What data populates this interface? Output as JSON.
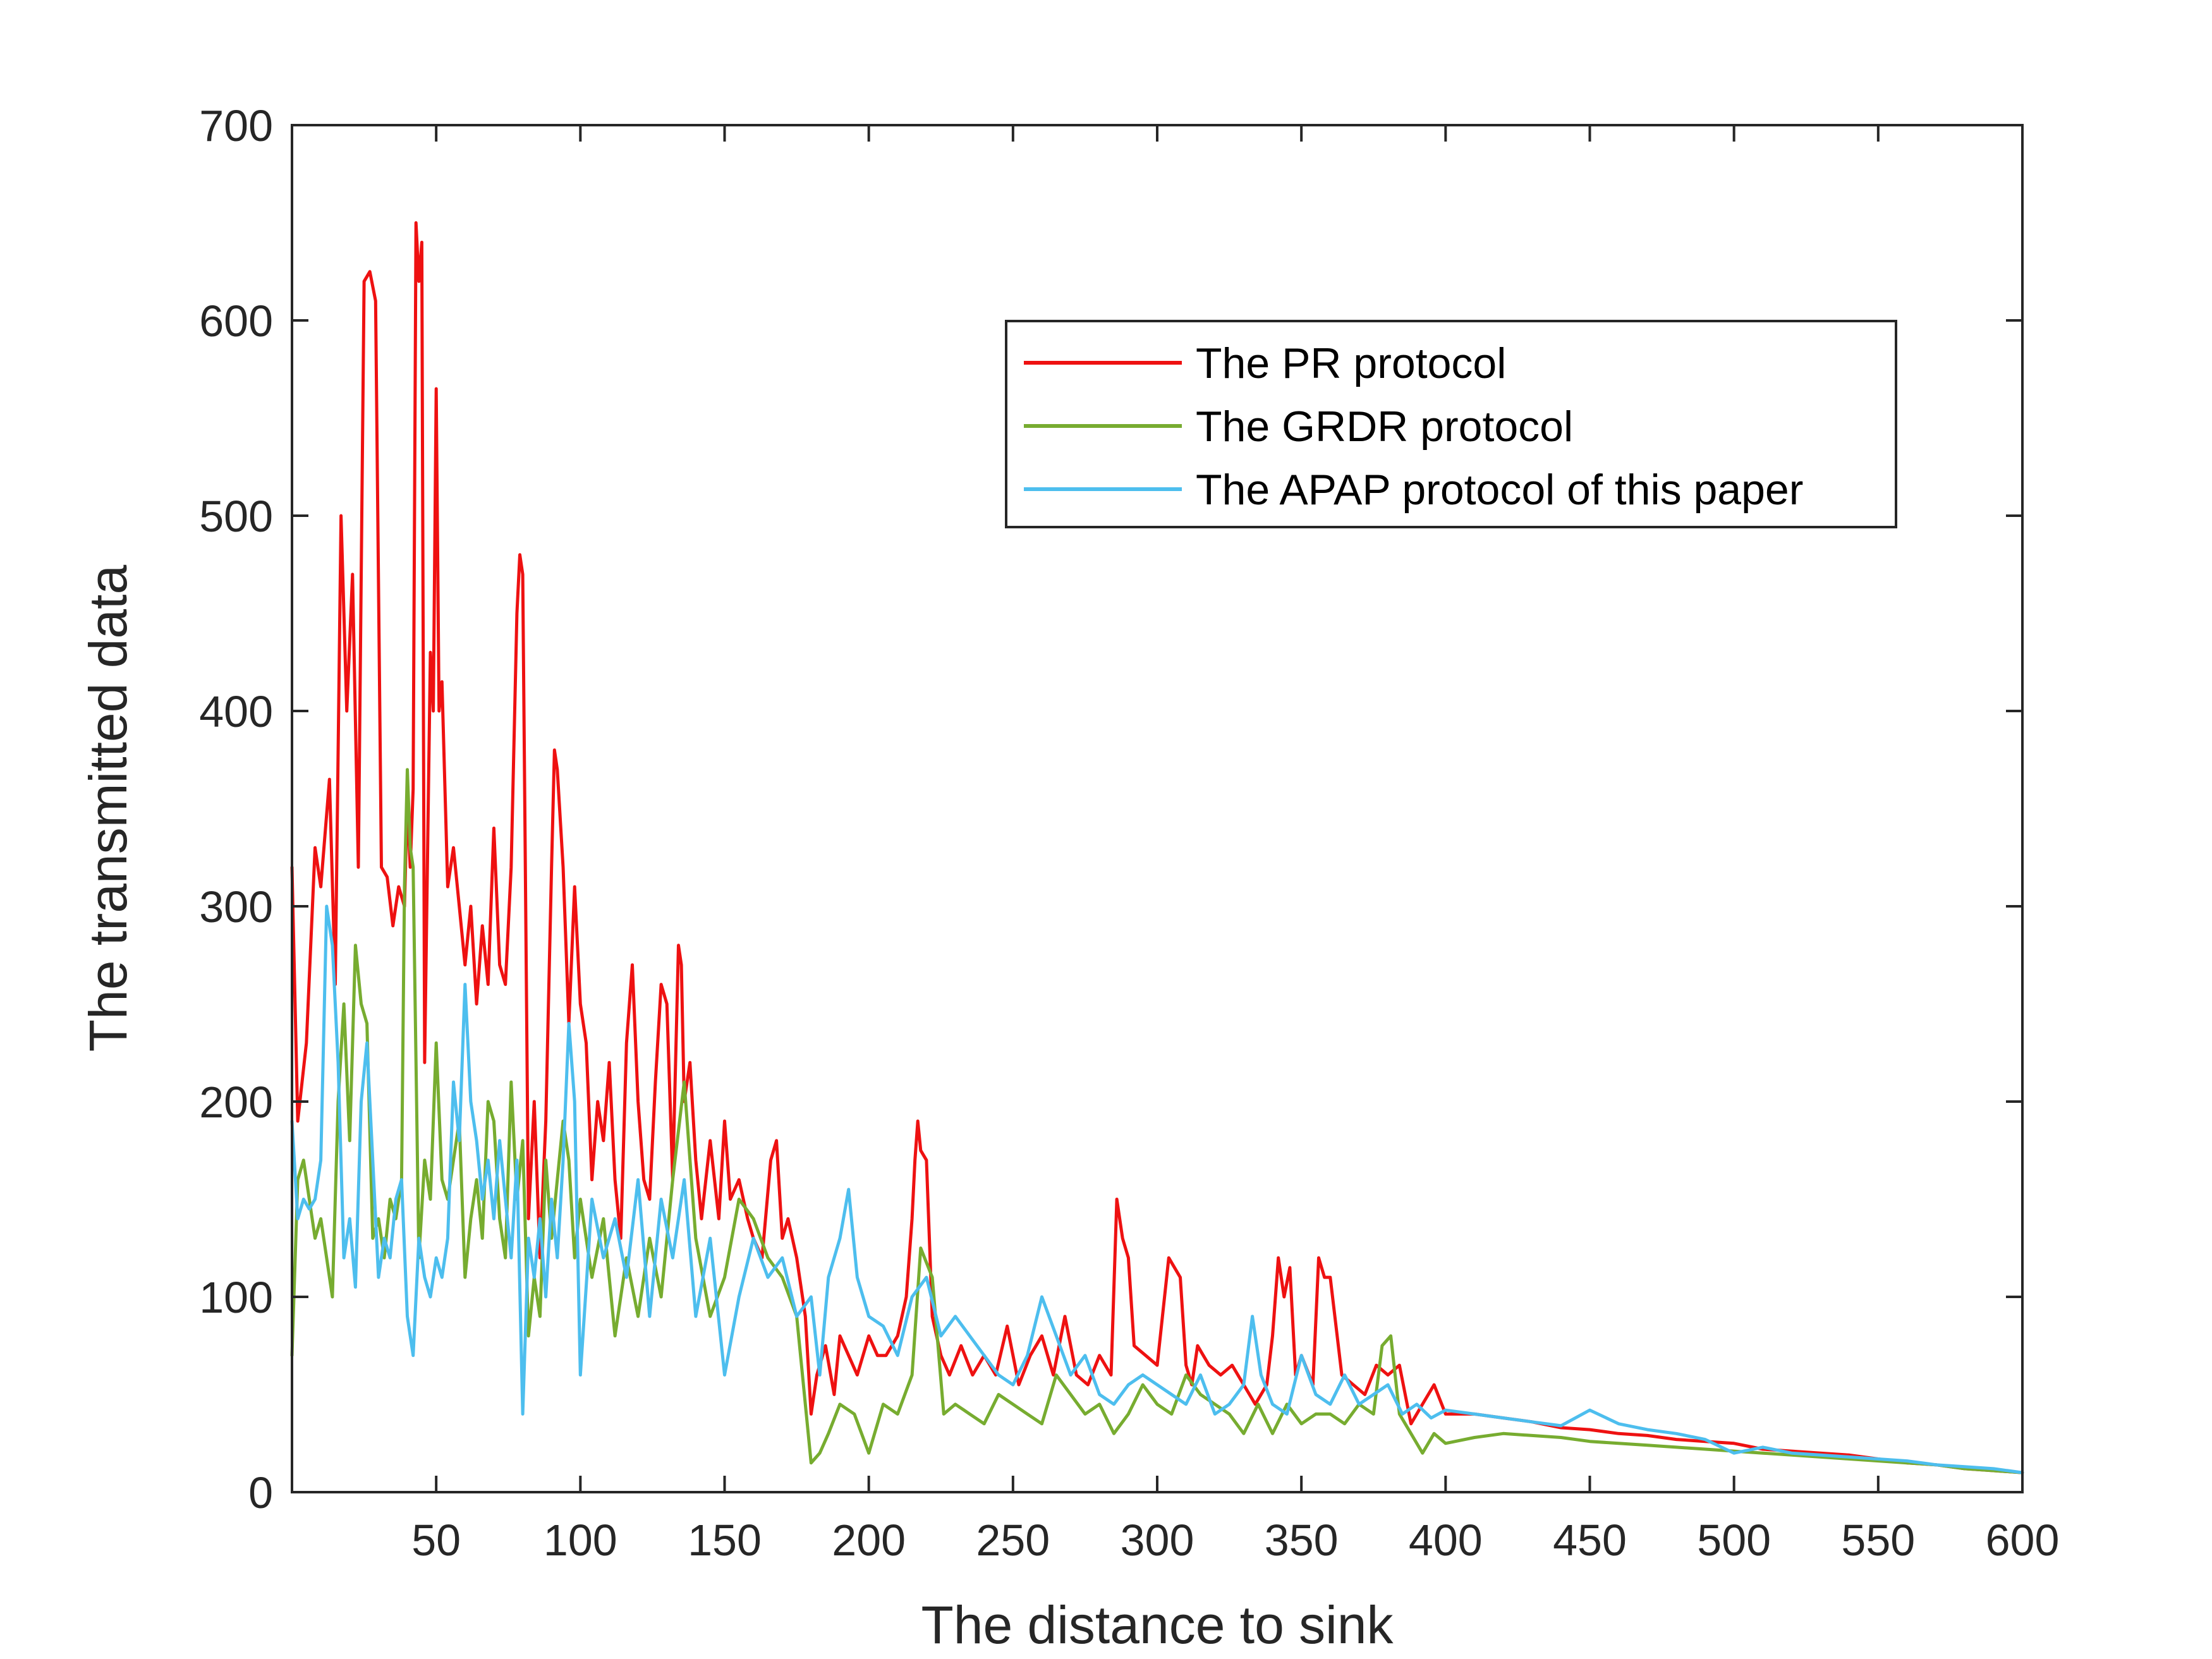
{
  "chart_data": {
    "type": "line",
    "title": "",
    "xlabel": "The distance to sink",
    "ylabel": "The transmitted data",
    "xlim": [
      0,
      600
    ],
    "ylim": [
      0,
      700
    ],
    "xticks": [
      50,
      100,
      150,
      200,
      250,
      300,
      350,
      400,
      450,
      500,
      550,
      600
    ],
    "yticks": [
      0,
      100,
      200,
      300,
      400,
      500,
      600,
      700
    ],
    "grid": false,
    "legend_position": "top-right",
    "series": [
      {
        "name": "The PR protocol",
        "color": "#ee1111",
        "x": [
          0,
          2,
          5,
          8,
          10,
          13,
          15,
          17,
          19,
          21,
          23,
          25,
          27,
          29,
          31,
          33,
          35,
          37,
          39,
          40,
          41,
          42,
          43,
          44,
          45,
          46,
          48,
          49,
          50,
          51,
          52,
          54,
          56,
          58,
          60,
          62,
          64,
          66,
          68,
          70,
          72,
          74,
          76,
          78,
          79,
          80,
          82,
          84,
          86,
          88,
          90,
          91,
          92,
          94,
          96,
          98,
          100,
          102,
          104,
          106,
          108,
          110,
          112,
          114,
          116,
          118,
          120,
          122,
          124,
          126,
          128,
          130,
          132,
          134,
          135,
          136,
          138,
          140,
          142,
          145,
          148,
          150,
          152,
          155,
          158,
          160,
          163,
          166,
          168,
          170,
          172,
          175,
          178,
          180,
          182,
          185,
          188,
          190,
          193,
          196,
          200,
          203,
          206,
          210,
          213,
          215,
          216,
          217,
          218,
          220,
          222,
          225,
          228,
          232,
          236,
          240,
          244,
          248,
          252,
          256,
          260,
          264,
          268,
          272,
          276,
          280,
          284,
          286,
          288,
          290,
          292,
          296,
          300,
          304,
          306,
          308,
          310,
          312,
          314,
          318,
          322,
          326,
          330,
          334,
          338,
          340,
          342,
          344,
          346,
          348,
          350,
          354,
          356,
          358,
          360,
          364,
          368,
          372,
          376,
          380,
          384,
          388,
          392,
          396,
          400,
          410,
          420,
          430,
          440,
          450,
          460,
          470,
          480,
          490,
          500,
          510,
          520,
          530,
          540,
          550,
          560,
          570,
          580,
          590,
          600
        ],
        "y": [
          320,
          190,
          230,
          330,
          310,
          365,
          260,
          500,
          400,
          470,
          320,
          620,
          625,
          610,
          320,
          315,
          290,
          310,
          300,
          355,
          320,
          360,
          650,
          620,
          640,
          220,
          430,
          400,
          565,
          400,
          415,
          310,
          330,
          300,
          270,
          300,
          250,
          290,
          260,
          340,
          270,
          260,
          320,
          450,
          480,
          470,
          140,
          200,
          120,
          190,
          320,
          380,
          370,
          320,
          240,
          310,
          250,
          230,
          160,
          200,
          180,
          220,
          160,
          130,
          230,
          270,
          200,
          160,
          150,
          210,
          260,
          250,
          160,
          280,
          270,
          200,
          220,
          170,
          140,
          180,
          140,
          190,
          150,
          160,
          140,
          130,
          120,
          170,
          180,
          130,
          140,
          120,
          90,
          40,
          60,
          75,
          50,
          80,
          70,
          60,
          80,
          70,
          70,
          80,
          100,
          140,
          170,
          190,
          175,
          170,
          90,
          70,
          60,
          75,
          60,
          70,
          60,
          85,
          55,
          70,
          80,
          60,
          90,
          60,
          55,
          70,
          60,
          150,
          130,
          120,
          75,
          70,
          65,
          120,
          115,
          110,
          65,
          55,
          75,
          65,
          60,
          65,
          55,
          45,
          55,
          80,
          120,
          100,
          115,
          60,
          70,
          55,
          120,
          110,
          110,
          60,
          55,
          50,
          65,
          60,
          65,
          35,
          45,
          55,
          40,
          40,
          38,
          36,
          33,
          32,
          30,
          29,
          27,
          26,
          25,
          22,
          21,
          20,
          19,
          17,
          15,
          14,
          12,
          11,
          10
        ]
      },
      {
        "name": "The GRDR protocol",
        "color": "#77ac30",
        "x": [
          0,
          2,
          4,
          6,
          8,
          10,
          12,
          14,
          16,
          18,
          20,
          22,
          24,
          26,
          28,
          30,
          32,
          34,
          36,
          38,
          39,
          40,
          41,
          42,
          44,
          46,
          48,
          50,
          52,
          54,
          56,
          58,
          60,
          62,
          64,
          66,
          68,
          70,
          72,
          74,
          76,
          78,
          80,
          82,
          84,
          86,
          88,
          90,
          92,
          94,
          96,
          98,
          100,
          104,
          108,
          112,
          116,
          120,
          124,
          128,
          132,
          136,
          140,
          145,
          150,
          155,
          160,
          165,
          170,
          175,
          180,
          183,
          186,
          190,
          195,
          200,
          205,
          210,
          215,
          218,
          222,
          226,
          230,
          235,
          240,
          245,
          250,
          255,
          260,
          265,
          270,
          275,
          280,
          285,
          290,
          295,
          300,
          305,
          310,
          315,
          320,
          325,
          330,
          335,
          340,
          345,
          350,
          355,
          360,
          365,
          370,
          375,
          378,
          381,
          384,
          388,
          392,
          396,
          400,
          410,
          420,
          430,
          440,
          450,
          460,
          470,
          480,
          490,
          500,
          510,
          520,
          530,
          540,
          550,
          560,
          570,
          580,
          590,
          600
        ],
        "y": [
          70,
          160,
          170,
          150,
          130,
          140,
          120,
          100,
          200,
          250,
          180,
          280,
          250,
          240,
          130,
          140,
          120,
          150,
          140,
          160,
          310,
          370,
          330,
          320,
          120,
          170,
          150,
          230,
          160,
          150,
          170,
          190,
          110,
          140,
          160,
          130,
          200,
          190,
          140,
          120,
          210,
          150,
          180,
          80,
          110,
          90,
          170,
          130,
          160,
          190,
          170,
          120,
          150,
          110,
          140,
          80,
          120,
          90,
          130,
          100,
          160,
          210,
          130,
          90,
          110,
          150,
          140,
          120,
          110,
          90,
          15,
          20,
          30,
          45,
          40,
          20,
          45,
          40,
          60,
          125,
          110,
          40,
          45,
          40,
          35,
          50,
          45,
          40,
          35,
          60,
          50,
          40,
          45,
          30,
          40,
          55,
          45,
          40,
          60,
          50,
          45,
          40,
          30,
          45,
          30,
          45,
          35,
          40,
          40,
          35,
          45,
          40,
          75,
          80,
          40,
          30,
          20,
          30,
          25,
          28,
          30,
          29,
          28,
          26,
          25,
          24,
          23,
          22,
          21,
          20,
          19,
          18,
          17,
          16,
          15,
          14,
          12,
          11,
          10
        ]
      },
      {
        "name": "The APAP protocol of this paper",
        "color": "#4dbeee",
        "x": [
          0,
          2,
          4,
          6,
          8,
          10,
          12,
          14,
          16,
          18,
          20,
          22,
          24,
          26,
          28,
          30,
          32,
          34,
          36,
          38,
          40,
          42,
          44,
          46,
          48,
          50,
          52,
          54,
          56,
          58,
          60,
          62,
          64,
          66,
          68,
          70,
          72,
          74,
          76,
          78,
          80,
          82,
          84,
          86,
          88,
          90,
          92,
          94,
          96,
          98,
          100,
          104,
          108,
          112,
          116,
          120,
          124,
          128,
          132,
          136,
          140,
          145,
          150,
          155,
          160,
          165,
          170,
          175,
          180,
          183,
          186,
          190,
          193,
          196,
          200,
          205,
          210,
          215,
          220,
          225,
          230,
          235,
          240,
          245,
          250,
          255,
          260,
          265,
          270,
          275,
          280,
          285,
          290,
          295,
          300,
          305,
          310,
          315,
          320,
          325,
          330,
          333,
          336,
          340,
          345,
          350,
          355,
          360,
          365,
          370,
          375,
          380,
          385,
          390,
          395,
          400,
          410,
          420,
          430,
          440,
          450,
          460,
          470,
          480,
          490,
          500,
          510,
          520,
          530,
          540,
          550,
          560,
          570,
          580,
          590,
          600
        ],
        "y": [
          190,
          140,
          150,
          145,
          150,
          170,
          300,
          280,
          220,
          120,
          140,
          105,
          200,
          230,
          170,
          110,
          130,
          120,
          150,
          160,
          90,
          70,
          130,
          110,
          100,
          120,
          110,
          130,
          210,
          180,
          260,
          200,
          180,
          150,
          170,
          140,
          180,
          150,
          120,
          170,
          40,
          130,
          110,
          140,
          100,
          150,
          120,
          170,
          240,
          200,
          60,
          150,
          120,
          140,
          110,
          160,
          90,
          150,
          120,
          160,
          90,
          130,
          60,
          100,
          130,
          110,
          120,
          90,
          100,
          60,
          110,
          130,
          155,
          110,
          90,
          85,
          70,
          100,
          110,
          80,
          90,
          80,
          70,
          60,
          55,
          70,
          100,
          80,
          60,
          70,
          50,
          45,
          55,
          60,
          55,
          50,
          45,
          60,
          40,
          45,
          55,
          90,
          60,
          45,
          40,
          70,
          50,
          45,
          60,
          45,
          50,
          55,
          40,
          45,
          38,
          42,
          40,
          38,
          36,
          34,
          42,
          35,
          32,
          30,
          27,
          20,
          23,
          20,
          19,
          18,
          17,
          16,
          14,
          13,
          12,
          10
        ]
      }
    ]
  }
}
